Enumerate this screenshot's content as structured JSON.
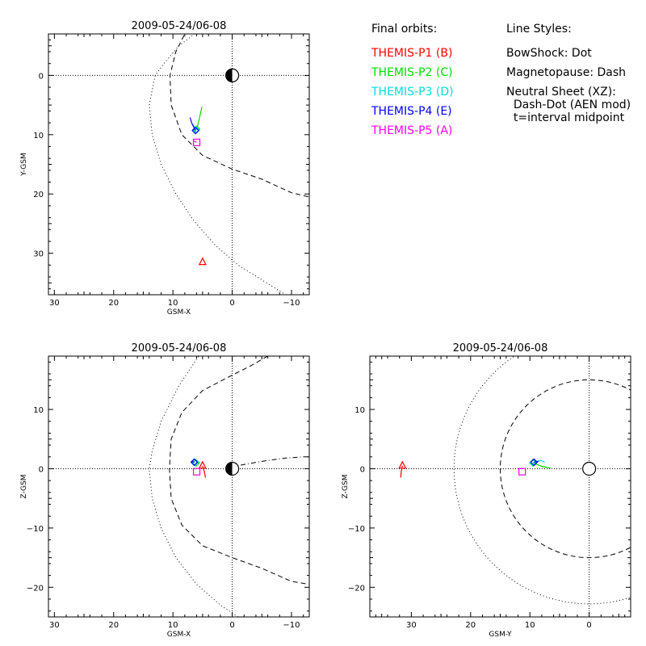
{
  "legend": {
    "orbits_title": "Final orbits:",
    "probes": [
      {
        "label": "THEMIS-P1 (B)",
        "color": "#ff0000"
      },
      {
        "label": "THEMIS-P2 (C)",
        "color": "#00dd00"
      },
      {
        "label": "THEMIS-P3 (D)",
        "color": "#00dddd"
      },
      {
        "label": "THEMIS-P4 (E)",
        "color": "#0000ff"
      },
      {
        "label": "THEMIS-P5 (A)",
        "color": "#ff00ff"
      }
    ],
    "styles_title": "Line Styles:",
    "styles": [
      "BowShock: Dot",
      "Magnetopause: Dash",
      "Neutral Sheet (XZ):",
      "  Dash-Dot (AEN mod)",
      "  t=interval midpoint"
    ]
  },
  "chart_data": [
    {
      "type": "scatter",
      "title": "2009-05-24/06-08",
      "xlabel": "GSM-X",
      "ylabel": "Y-GSM",
      "xlim": [
        31,
        -13
      ],
      "ylim": [
        -7,
        37
      ],
      "xticks": [
        30,
        20,
        10,
        0,
        -10
      ],
      "yticks": [
        0,
        10,
        20,
        30
      ],
      "y_reversed": true,
      "earth": {
        "x": 0,
        "y": 0,
        "style": "half"
      },
      "bowshock": [
        [
          5,
          -8
        ],
        [
          9,
          -5
        ],
        [
          11.5,
          -2
        ],
        [
          13,
          0
        ],
        [
          14,
          5
        ],
        [
          13.5,
          10
        ],
        [
          12,
          15
        ],
        [
          9.5,
          20
        ],
        [
          6.5,
          24.5
        ],
        [
          3,
          28.5
        ],
        [
          -1,
          32
        ],
        [
          -5,
          34.5
        ],
        [
          -9,
          37
        ]
      ],
      "magnetopause": [
        [
          7.5,
          -8
        ],
        [
          9.5,
          -4
        ],
        [
          10.5,
          0
        ],
        [
          10.3,
          5
        ],
        [
          8.5,
          10
        ],
        [
          5,
          13.5
        ],
        [
          0,
          15.8
        ],
        [
          -5,
          17.5
        ],
        [
          -10,
          19.8
        ],
        [
          -13,
          20.5
        ]
      ],
      "neutral_sheet": [],
      "probes": [
        {
          "name": "THEMIS-P1 (B)",
          "color": "#ff0000",
          "marker": "triangle",
          "x": 5,
          "y": 31.5,
          "track": []
        },
        {
          "name": "THEMIS-P2 (C)",
          "color": "#00dd00",
          "marker": "diamond",
          "x": 6,
          "y": 9.1,
          "track": [
            [
              6,
              9.1
            ],
            [
              5.6,
              7.5
            ],
            [
              5.1,
              5.3
            ]
          ]
        },
        {
          "name": "THEMIS-P3 (D)",
          "color": "#00dddd",
          "marker": "diamond",
          "x": 6.1,
          "y": 9.2,
          "track": [
            [
              6.1,
              9.2
            ],
            [
              6.6,
              8.3
            ]
          ]
        },
        {
          "name": "THEMIS-P4 (E)",
          "color": "#0000ff",
          "marker": "diamond",
          "x": 6.2,
          "y": 9.3,
          "track": [
            [
              6.2,
              9.3
            ],
            [
              6.8,
              8.1
            ],
            [
              7.1,
              7.1
            ]
          ]
        },
        {
          "name": "THEMIS-P5 (A)",
          "color": "#ff00ff",
          "marker": "square",
          "x": 6,
          "y": 11.3,
          "track": [
            [
              6,
              11.3
            ],
            [
              6.6,
              11
            ]
          ]
        }
      ]
    },
    {
      "type": "scatter",
      "title": "2009-05-24/06-08",
      "xlabel": "GSM-X",
      "ylabel": "Z-GSM",
      "xlim": [
        31,
        -13
      ],
      "ylim": [
        -25,
        19
      ],
      "xticks": [
        30,
        20,
        10,
        0,
        -10
      ],
      "yticks": [
        -20,
        -10,
        0,
        10
      ],
      "y_reversed": false,
      "earth": {
        "x": 0,
        "y": 0,
        "style": "half"
      },
      "bowshock": [
        [
          2,
          25
        ],
        [
          5,
          20
        ],
        [
          9,
          14
        ],
        [
          12,
          8
        ],
        [
          13.5,
          3
        ],
        [
          14,
          0
        ],
        [
          13.5,
          -5
        ],
        [
          12,
          -10
        ],
        [
          9.5,
          -15
        ],
        [
          6,
          -19.5
        ],
        [
          2,
          -23
        ],
        [
          -1,
          -25
        ]
      ],
      "magnetopause": [
        [
          -6,
          19
        ],
        [
          -3,
          17.3
        ],
        [
          0,
          15.8
        ],
        [
          5,
          13.2
        ],
        [
          8.5,
          9.5
        ],
        [
          10.3,
          5
        ],
        [
          10.6,
          0
        ],
        [
          10.3,
          -5
        ],
        [
          8.5,
          -9.5
        ],
        [
          5,
          -13
        ],
        [
          0,
          -15
        ],
        [
          -5,
          -16.8
        ],
        [
          -10,
          -19
        ],
        [
          -13,
          -19.5
        ]
      ],
      "neutral_sheet": [
        [
          0.3,
          0.3
        ],
        [
          -3,
          0.9
        ],
        [
          -6,
          1.4
        ],
        [
          -9,
          1.8
        ],
        [
          -12,
          2
        ],
        [
          -13,
          2
        ]
      ],
      "probes": [
        {
          "name": "THEMIS-P1 (B)",
          "color": "#ff0000",
          "marker": "triangle",
          "x": 5,
          "y": 0.5,
          "track": [
            [
              4.5,
              -1.5
            ],
            [
              4.7,
              -0.5
            ],
            [
              5,
              0.5
            ]
          ]
        },
        {
          "name": "THEMIS-P2 (C)",
          "color": "#00dd00",
          "marker": "diamond",
          "x": 6.1,
          "y": 1,
          "track": [
            [
              6.1,
              1
            ],
            [
              5.6,
              1.1
            ]
          ]
        },
        {
          "name": "THEMIS-P3 (D)",
          "color": "#00dddd",
          "marker": "diamond",
          "x": 6.3,
          "y": 1.1,
          "track": [
            [
              6.3,
              1.1
            ],
            [
              6.9,
              1.3
            ]
          ]
        },
        {
          "name": "THEMIS-P4 (E)",
          "color": "#0000ff",
          "marker": "diamond",
          "x": 6.4,
          "y": 1.1,
          "track": [
            [
              6.4,
              1.1
            ],
            [
              6.9,
              1.2
            ]
          ]
        },
        {
          "name": "THEMIS-P5 (A)",
          "color": "#ff00ff",
          "marker": "square",
          "x": 6,
          "y": -0.5,
          "track": []
        }
      ]
    },
    {
      "type": "scatter",
      "title": "2009-05-24/06-08",
      "xlabel": "GSM-Y",
      "ylabel": "Z-GSM",
      "xlim": [
        37,
        -7
      ],
      "ylim": [
        -25,
        19
      ],
      "xticks": [
        30,
        20,
        10,
        0
      ],
      "yticks": [
        -20,
        -10,
        0,
        10
      ],
      "y_reversed": false,
      "earth": {
        "x": 0,
        "y": 0,
        "style": "circle"
      },
      "bowshock_circle": {
        "cx": 0,
        "cy": 0,
        "r": 22.8
      },
      "magnetopause_circle": {
        "cx": 0,
        "cy": 0,
        "r": 15
      },
      "probes": [
        {
          "name": "THEMIS-P1 (B)",
          "color": "#ff0000",
          "marker": "triangle",
          "x": 31.5,
          "y": 0.5,
          "track": [
            [
              31.8,
              -1.5
            ],
            [
              31.7,
              -0.5
            ],
            [
              31.5,
              0.5
            ]
          ]
        },
        {
          "name": "THEMIS-P2 (C)",
          "color": "#00dd00",
          "marker": "diamond",
          "x": 9.5,
          "y": 1,
          "track": [
            [
              9.5,
              1
            ],
            [
              8,
              0.4
            ],
            [
              6.5,
              0.1
            ]
          ]
        },
        {
          "name": "THEMIS-P3 (D)",
          "color": "#00dddd",
          "marker": "diamond",
          "x": 9.4,
          "y": 1,
          "track": [
            [
              9.4,
              1
            ],
            [
              8.2,
              1.4
            ],
            [
              7.5,
              1.1
            ]
          ]
        },
        {
          "name": "THEMIS-P4 (E)",
          "color": "#0000ff",
          "marker": "diamond",
          "x": 9.3,
          "y": 1.1,
          "track": [
            [
              9.3,
              1.1
            ],
            [
              8.5,
              1.3
            ]
          ]
        },
        {
          "name": "THEMIS-P5 (A)",
          "color": "#ff00ff",
          "marker": "square",
          "x": 11.3,
          "y": -0.5,
          "track": []
        }
      ]
    }
  ]
}
